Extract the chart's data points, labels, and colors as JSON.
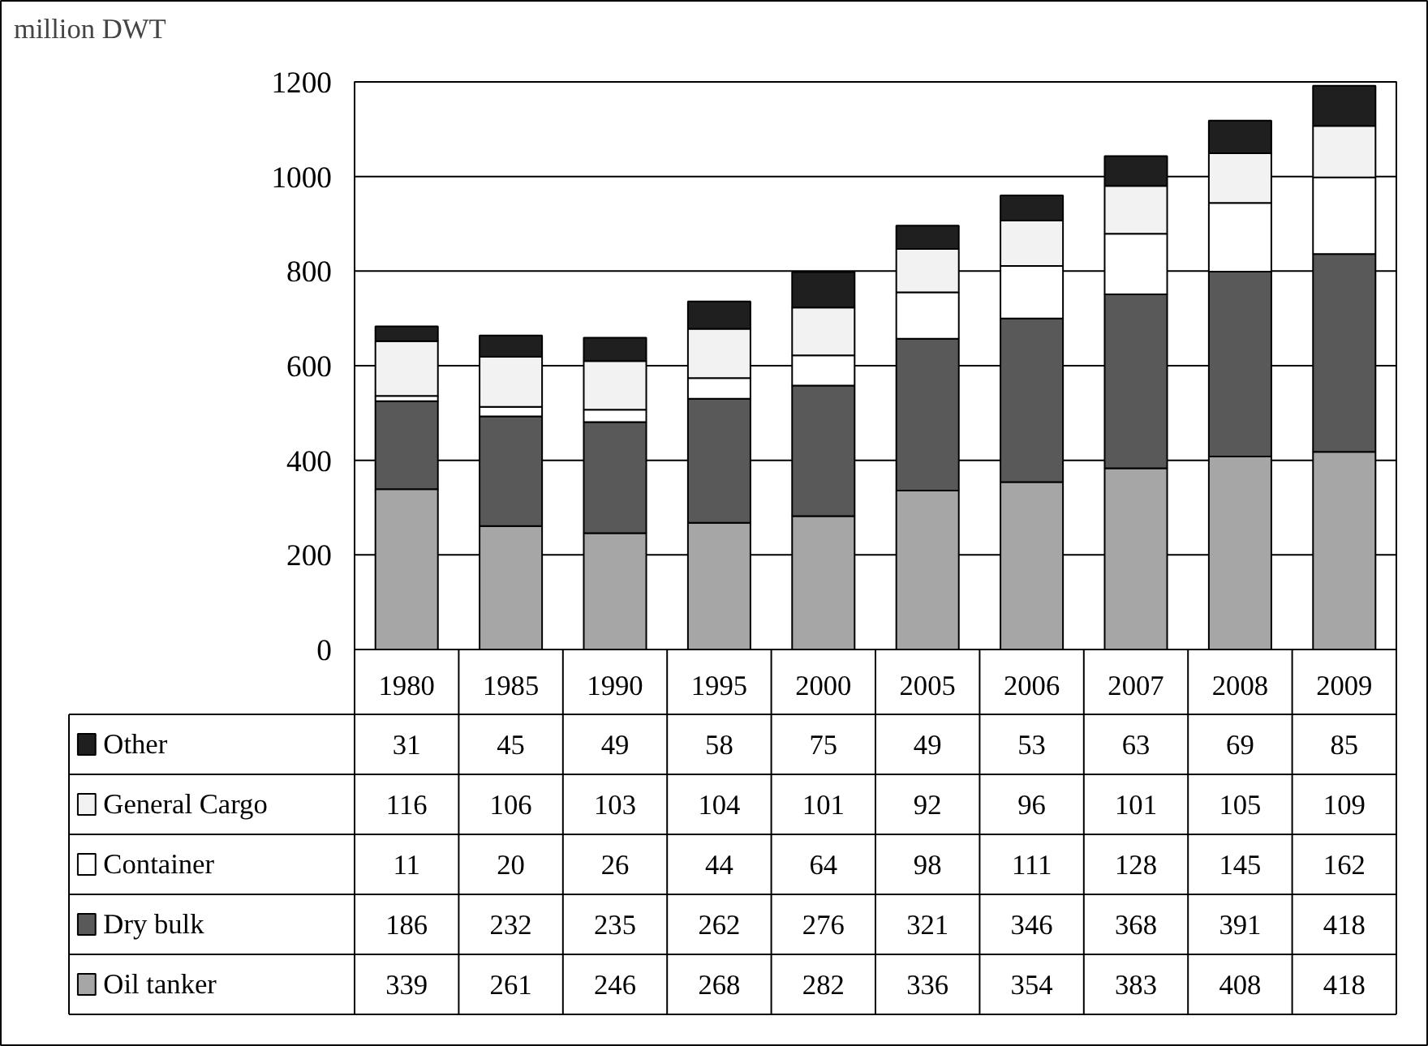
{
  "chart_data": {
    "type": "bar",
    "stacked": true,
    "ylabel": "million DWT",
    "categories": [
      "1980",
      "1985",
      "1990",
      "1995",
      "2000",
      "2005",
      "2006",
      "2007",
      "2008",
      "2009"
    ],
    "series": [
      {
        "name": "Oil tanker",
        "color": "#a6a6a6",
        "values": [
          339,
          261,
          246,
          268,
          282,
          336,
          354,
          383,
          408,
          418
        ]
      },
      {
        "name": "Dry bulk",
        "color": "#595959",
        "values": [
          186,
          232,
          235,
          262,
          276,
          321,
          346,
          368,
          391,
          418
        ]
      },
      {
        "name": "Container",
        "color": "#ffffff",
        "values": [
          11,
          20,
          26,
          44,
          64,
          98,
          111,
          128,
          145,
          162
        ]
      },
      {
        "name": "General Cargo",
        "color": "#f2f2f2",
        "values": [
          116,
          106,
          103,
          104,
          101,
          92,
          96,
          101,
          105,
          109
        ]
      },
      {
        "name": "Other",
        "color": "#1f1f1f",
        "values": [
          31,
          45,
          49,
          58,
          75,
          49,
          53,
          63,
          69,
          85
        ]
      }
    ],
    "ylim": [
      0,
      1200
    ],
    "yticks": [
      0,
      200,
      400,
      600,
      800,
      1000,
      1200
    ],
    "grid": "y",
    "legend": "bottom",
    "data_labels": true
  }
}
